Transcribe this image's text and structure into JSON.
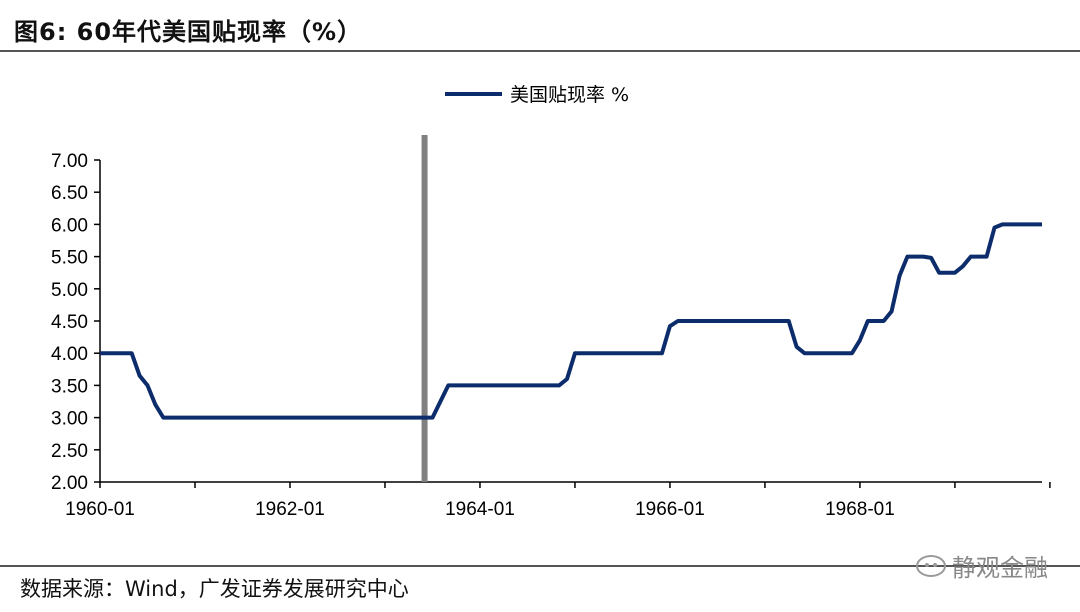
{
  "header": {
    "title": "图6:  60年代美国贴现率（%）"
  },
  "footer": {
    "source": "数据来源：Wind，广发证券发展研究中心",
    "watermark": "静观金融",
    "watermark_icon": "wechat-icon"
  },
  "colors": {
    "series": "#0d2c6b",
    "marker": "#808080",
    "axis": "#000000"
  },
  "chart_data": {
    "type": "line",
    "title": "",
    "xlabel": "",
    "ylabel": "",
    "ylim": [
      2.0,
      7.0
    ],
    "yticks": [
      "7.00",
      "6.50",
      "6.00",
      "5.50",
      "5.00",
      "4.50",
      "4.00",
      "3.50",
      "3.00",
      "2.50",
      "2.00"
    ],
    "xlim": [
      "1960-01",
      "1969-12"
    ],
    "xticks": [
      "1960-01",
      "1962-01",
      "1964-01",
      "1966-01",
      "1968-01"
    ],
    "grid": false,
    "legend": "top-center",
    "vertical_marker": {
      "x": "1963-06"
    },
    "series": [
      {
        "name": "美国贴现率 %",
        "points": [
          [
            "1960-01",
            4.0
          ],
          [
            "1960-05",
            4.0
          ],
          [
            "1960-06",
            3.65
          ],
          [
            "1960-07",
            3.5
          ],
          [
            "1960-08",
            3.2
          ],
          [
            "1960-09",
            3.0
          ],
          [
            "1963-06",
            3.0
          ],
          [
            "1963-07",
            3.0
          ],
          [
            "1963-09",
            3.5
          ],
          [
            "1964-11",
            3.5
          ],
          [
            "1964-12",
            3.6
          ],
          [
            "1965-01",
            4.0
          ],
          [
            "1965-12",
            4.0
          ],
          [
            "1966-01",
            4.42
          ],
          [
            "1966-02",
            4.5
          ],
          [
            "1967-04",
            4.5
          ],
          [
            "1967-05",
            4.1
          ],
          [
            "1967-06",
            4.0
          ],
          [
            "1967-12",
            4.0
          ],
          [
            "1968-01",
            4.2
          ],
          [
            "1968-02",
            4.5
          ],
          [
            "1968-04",
            4.5
          ],
          [
            "1968-05",
            4.65
          ],
          [
            "1968-06",
            5.2
          ],
          [
            "1968-07",
            5.5
          ],
          [
            "1968-09",
            5.5
          ],
          [
            "1968-10",
            5.48
          ],
          [
            "1968-11",
            5.25
          ],
          [
            "1969-01",
            5.25
          ],
          [
            "1969-02",
            5.35
          ],
          [
            "1969-03",
            5.5
          ],
          [
            "1969-05",
            5.5
          ],
          [
            "1969-06",
            5.95
          ],
          [
            "1969-07",
            6.0
          ],
          [
            "1969-12",
            6.0
          ]
        ]
      }
    ]
  }
}
